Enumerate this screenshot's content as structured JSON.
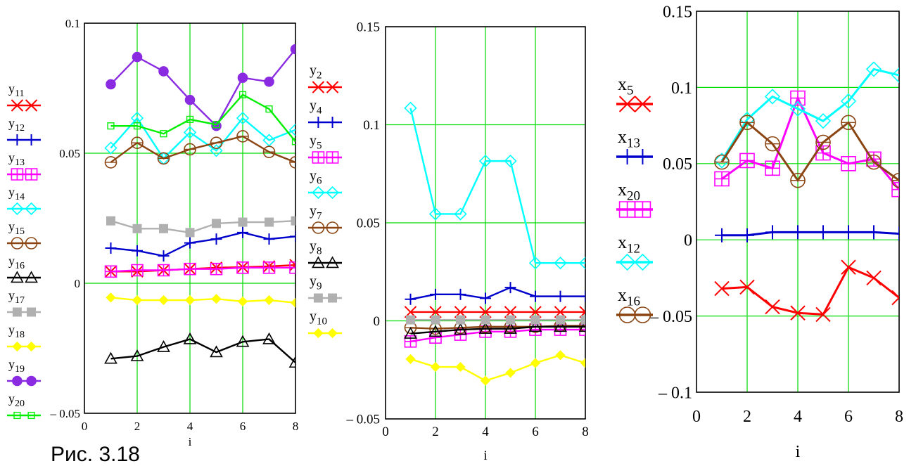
{
  "caption": "Рис. 3.18",
  "chart_data": [
    {
      "type": "line",
      "xlabel": "i",
      "xlim": [
        0,
        8
      ],
      "ylim": [
        -0.05,
        0.1
      ],
      "xticks": [
        "0",
        "2",
        "4",
        "6",
        "8"
      ],
      "yticks": [
        "0.1",
        "0.05",
        "0",
        "– 0.05"
      ],
      "x": [
        1,
        2,
        3,
        4,
        5,
        6,
        7,
        8
      ],
      "grid": true,
      "legend_position": "left",
      "series": [
        {
          "name": "y",
          "sub": "11",
          "color": "#ff0000",
          "marker": "x",
          "values": [
            0.0045,
            0.0045,
            0.005,
            0.0055,
            0.006,
            0.0062,
            0.0065,
            0.007
          ]
        },
        {
          "name": "y",
          "sub": "12",
          "color": "#0000cc",
          "marker": "plus",
          "values": [
            0.0135,
            0.0125,
            0.0105,
            0.0155,
            0.017,
            0.0195,
            0.017,
            0.018
          ]
        },
        {
          "name": "y",
          "sub": "13",
          "color": "#ff00ff",
          "marker": "square-plus",
          "values": [
            0.0045,
            0.005,
            0.005,
            0.0055,
            0.0055,
            0.006,
            0.006,
            0.006
          ]
        },
        {
          "name": "y",
          "sub": "14",
          "color": "#00ffff",
          "marker": "diamond",
          "values": [
            0.052,
            0.0635,
            0.048,
            0.058,
            0.051,
            0.0635,
            0.055,
            0.059
          ]
        },
        {
          "name": "y",
          "sub": "15",
          "color": "#8b4513",
          "marker": "circle",
          "values": [
            0.0465,
            0.054,
            0.048,
            0.0515,
            0.054,
            0.0565,
            0.0505,
            0.0465
          ]
        },
        {
          "name": "y",
          "sub": "16",
          "color": "#000000",
          "marker": "triangle",
          "values": [
            -0.029,
            -0.028,
            -0.0245,
            -0.0215,
            -0.0265,
            -0.0225,
            -0.0215,
            -0.0305
          ]
        },
        {
          "name": "y",
          "sub": "17",
          "color": "#b0b0b0",
          "marker": "square-filled",
          "values": [
            0.024,
            0.021,
            0.021,
            0.0195,
            0.023,
            0.0235,
            0.0235,
            0.024
          ]
        },
        {
          "name": "y",
          "sub": "18",
          "color": "#ffff00",
          "marker": "diamond-filled",
          "values": [
            -0.0055,
            -0.0065,
            -0.0065,
            -0.0065,
            -0.006,
            -0.007,
            -0.0065,
            -0.0075
          ]
        },
        {
          "name": "y",
          "sub": "19",
          "color": "#8a2be2",
          "marker": "circle-filled",
          "values": [
            0.0765,
            0.087,
            0.0815,
            0.0705,
            0.0605,
            0.079,
            0.0775,
            0.09
          ]
        },
        {
          "name": "y",
          "sub": "20",
          "color": "#00ee00",
          "marker": "square-small",
          "values": [
            0.0605,
            0.0605,
            0.0575,
            0.063,
            0.061,
            0.0725,
            0.067,
            0.0545
          ]
        }
      ]
    },
    {
      "type": "line",
      "xlabel": "i",
      "xlim": [
        0,
        8
      ],
      "ylim": [
        -0.05,
        0.15
      ],
      "xticks": [
        "0",
        "2",
        "4",
        "6",
        "8"
      ],
      "yticks": [
        "0.15",
        "0.1",
        "0.05",
        "0",
        "– 0.05"
      ],
      "x": [
        1,
        2,
        3,
        4,
        5,
        6,
        7,
        8
      ],
      "grid": true,
      "legend_position": "left",
      "series": [
        {
          "name": "y",
          "sub": "2",
          "color": "#ff0000",
          "marker": "x",
          "values": [
            0.0045,
            0.0045,
            0.0045,
            0.0045,
            0.0045,
            0.0045,
            0.0045,
            0.0045
          ]
        },
        {
          "name": "y",
          "sub": "4",
          "color": "#0000cc",
          "marker": "plus",
          "values": [
            0.011,
            0.0135,
            0.0135,
            0.0115,
            0.017,
            0.0125,
            0.0125,
            0.0125
          ]
        },
        {
          "name": "y",
          "sub": "5",
          "color": "#ff00ff",
          "marker": "square-plus",
          "values": [
            -0.0105,
            -0.0085,
            -0.007,
            -0.0055,
            -0.0055,
            -0.0045,
            -0.0045,
            -0.0045
          ]
        },
        {
          "name": "y",
          "sub": "6",
          "color": "#00ffff",
          "marker": "diamond",
          "values": [
            0.1085,
            0.0545,
            0.0545,
            0.0815,
            0.0815,
            0.0295,
            0.0295,
            0.0295
          ]
        },
        {
          "name": "y",
          "sub": "7",
          "color": "#8b4513",
          "marker": "circle",
          "values": [
            -0.0035,
            -0.004,
            -0.0035,
            -0.003,
            -0.003,
            -0.003,
            -0.0025,
            -0.0025
          ]
        },
        {
          "name": "y",
          "sub": "8",
          "color": "#000000",
          "marker": "triangle",
          "values": [
            -0.0065,
            -0.0055,
            -0.0045,
            -0.004,
            -0.004,
            -0.003,
            -0.003,
            -0.003
          ]
        },
        {
          "name": "y",
          "sub": "9",
          "color": "#b0b0b0",
          "marker": "square-filled",
          "values": [
            0.0005,
            0.0005,
            0.0005,
            0.0005,
            0.0005,
            0.0005,
            0.0005,
            0.0005
          ]
        },
        {
          "name": "y",
          "sub": "10",
          "color": "#ffff00",
          "marker": "diamond-filled",
          "values": [
            -0.0195,
            -0.0235,
            -0.0235,
            -0.0305,
            -0.0265,
            -0.0215,
            -0.0175,
            -0.0215
          ]
        }
      ]
    },
    {
      "type": "line",
      "xlabel": "i",
      "xlim": [
        0,
        8
      ],
      "ylim": [
        -0.1,
        0.15
      ],
      "xticks": [
        "0",
        "2",
        "4",
        "6",
        "8"
      ],
      "yticks": [
        "0.15",
        "0.1",
        "0.05",
        "0",
        "– 0.05",
        "– 0.1"
      ],
      "x": [
        1,
        2,
        3,
        4,
        5,
        6,
        7,
        8
      ],
      "grid": true,
      "legend_position": "left",
      "series": [
        {
          "name": "x",
          "sub": "5",
          "color": "#ff0000",
          "marker": "x",
          "values": [
            -0.032,
            -0.031,
            -0.044,
            -0.048,
            -0.049,
            -0.018,
            -0.025,
            -0.038
          ]
        },
        {
          "name": "x",
          "sub": "13",
          "color": "#0000cc",
          "marker": "plus",
          "values": [
            0.003,
            0.003,
            0.005,
            0.005,
            0.005,
            0.005,
            0.005,
            0.004
          ]
        },
        {
          "name": "x",
          "sub": "20",
          "color": "#ff00ff",
          "marker": "square-plus",
          "values": [
            0.04,
            0.052,
            0.047,
            0.093,
            0.057,
            0.05,
            0.053,
            0.033
          ]
        },
        {
          "name": "x",
          "sub": "12",
          "color": "#00ffff",
          "marker": "diamond",
          "values": [
            0.052,
            0.079,
            0.094,
            0.086,
            0.078,
            0.091,
            0.112,
            0.108
          ]
        },
        {
          "name": "x",
          "sub": "16",
          "color": "#8b4513",
          "marker": "circle",
          "values": [
            0.051,
            0.077,
            0.063,
            0.039,
            0.064,
            0.077,
            0.051,
            0.039
          ]
        }
      ]
    }
  ]
}
